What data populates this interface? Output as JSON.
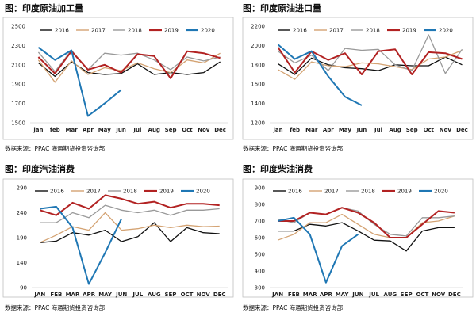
{
  "chart_data": [
    {
      "type": "line",
      "title": "图：印度原油加工量",
      "source": "数据来源：PPAC  海通期货投资咨询部",
      "categories": [
        "jan",
        "feb",
        "Mar",
        "Apr",
        "May",
        "Jun",
        "Jul",
        "Aug",
        "Sep",
        "Oct",
        "Nov",
        "Dec"
      ],
      "ylim": [
        1500,
        2500
      ],
      "yticks": [
        "1500",
        "1700",
        "1900",
        "2100",
        "2300",
        "2500"
      ],
      "legend_position": "top",
      "series": [
        {
          "name": "2016",
          "color": "#111111",
          "values": [
            2120,
            1980,
            2130,
            2020,
            2000,
            2010,
            2110,
            2000,
            2020,
            2000,
            2020,
            2130
          ]
        },
        {
          "name": "2017",
          "color": "#d4a373",
          "values": [
            2150,
            1920,
            2140,
            2000,
            2070,
            2040,
            2120,
            2060,
            2020,
            2150,
            2120,
            2220
          ]
        },
        {
          "name": "2018",
          "color": "#999999",
          "values": [
            2230,
            2030,
            2250,
            2050,
            2220,
            2200,
            2220,
            2150,
            2050,
            2180,
            2140,
            2180
          ]
        },
        {
          "name": "2019",
          "color": "#b22222",
          "values": [
            2180,
            2010,
            2240,
            2050,
            2100,
            2020,
            2210,
            2190,
            1960,
            2240,
            2220,
            2170
          ]
        },
        {
          "name": "2020",
          "color": "#1f77b4",
          "values": [
            2280,
            2150,
            2250,
            1570,
            1700,
            1840,
            null,
            null,
            null,
            null,
            null,
            null
          ]
        }
      ]
    },
    {
      "type": "line",
      "title": "图：印度原油进口量",
      "source": "数据来源：PPAC  海通期货投资咨询部",
      "categories": [
        "jan",
        "feb",
        "Mar",
        "Apr",
        "May",
        "Jun",
        "Jul",
        "Aug",
        "Sep",
        "Oct",
        "Nov",
        "Dec"
      ],
      "ylim": [
        1200,
        2200
      ],
      "yticks": [
        "1200",
        "1400",
        "1600",
        "1800",
        "2000",
        "2200"
      ],
      "legend_position": "top",
      "series": [
        {
          "name": "2016",
          "color": "#111111",
          "values": [
            1810,
            1700,
            1870,
            1800,
            1770,
            1760,
            1740,
            1800,
            1790,
            1790,
            1880,
            1800
          ]
        },
        {
          "name": "2017",
          "color": "#d4a373",
          "values": [
            1750,
            1650,
            1830,
            1790,
            1780,
            1820,
            1810,
            1780,
            1750,
            1860,
            1880,
            1950
          ]
        },
        {
          "name": "2018",
          "color": "#999999",
          "values": [
            1940,
            1820,
            1900,
            1740,
            1970,
            1950,
            1960,
            1800,
            1740,
            2110,
            1710,
            1960
          ]
        },
        {
          "name": "2019",
          "color": "#b22222",
          "values": [
            1980,
            1720,
            1940,
            1850,
            1920,
            1700,
            1940,
            1960,
            1700,
            1930,
            1920,
            1860
          ]
        },
        {
          "name": "2020",
          "color": "#1f77b4",
          "values": [
            2010,
            1860,
            1940,
            1680,
            1470,
            1380,
            null,
            null,
            null,
            null,
            null,
            null
          ]
        }
      ]
    },
    {
      "type": "line",
      "title": "图：印度汽油消费",
      "source": "数据来源：PPAC  海通期货投资咨询部",
      "categories": [
        "JAN",
        "FEB",
        "MAR",
        "APR",
        "MAY",
        "JUN",
        "JUL",
        "AUG",
        "SEP",
        "OCT",
        "NOV",
        "DEC"
      ],
      "ylim": [
        90,
        290
      ],
      "yticks": [
        "90",
        "140",
        "190",
        "240",
        "290"
      ],
      "legend_position": "top",
      "series": [
        {
          "name": "2016",
          "color": "#111111",
          "values": [
            180,
            183,
            200,
            195,
            205,
            182,
            192,
            220,
            182,
            210,
            200,
            198
          ]
        },
        {
          "name": "2017",
          "color": "#d4a373",
          "values": [
            180,
            195,
            212,
            205,
            240,
            205,
            208,
            215,
            210,
            215,
            212,
            213
          ]
        },
        {
          "name": "2018",
          "color": "#999999",
          "values": [
            220,
            220,
            240,
            230,
            255,
            245,
            240,
            245,
            235,
            245,
            245,
            248
          ]
        },
        {
          "name": "2019",
          "color": "#b22222",
          "values": [
            245,
            235,
            260,
            248,
            275,
            268,
            258,
            262,
            250,
            258,
            258,
            255
          ]
        },
        {
          "name": "2020",
          "color": "#1f77b4",
          "values": [
            248,
            252,
            210,
            97,
            160,
            228,
            null,
            null,
            null,
            null,
            null,
            null
          ]
        }
      ]
    },
    {
      "type": "line",
      "title": "图：印度柴油消费",
      "source": "数据来源：PPAC  海通期货投资咨询部",
      "categories": [
        "JAN",
        "FEB",
        "MAR",
        "APR",
        "MAY",
        "JUN",
        "JUL",
        "AUG",
        "SEP",
        "OCT",
        "NOV",
        "DEC"
      ],
      "ylim": [
        300,
        900
      ],
      "yticks": [
        "300",
        "400",
        "500",
        "600",
        "700",
        "800",
        "900"
      ],
      "legend_position": "top",
      "series": [
        {
          "name": "2016",
          "color": "#111111",
          "values": [
            640,
            640,
            680,
            670,
            690,
            640,
            585,
            580,
            520,
            640,
            660,
            660
          ]
        },
        {
          "name": "2017",
          "color": "#d4a373",
          "values": [
            585,
            620,
            690,
            690,
            740,
            680,
            620,
            600,
            600,
            690,
            700,
            730
          ]
        },
        {
          "name": "2018",
          "color": "#999999",
          "values": [
            710,
            690,
            750,
            740,
            780,
            760,
            680,
            620,
            610,
            720,
            720,
            730
          ]
        },
        {
          "name": "2019",
          "color": "#b22222",
          "values": [
            700,
            700,
            750,
            740,
            780,
            750,
            690,
            600,
            600,
            680,
            760,
            750
          ]
        },
        {
          "name": "2020",
          "color": "#1f77b4",
          "values": [
            700,
            720,
            620,
            330,
            550,
            620,
            null,
            null,
            null,
            null,
            null,
            null
          ]
        }
      ]
    }
  ]
}
